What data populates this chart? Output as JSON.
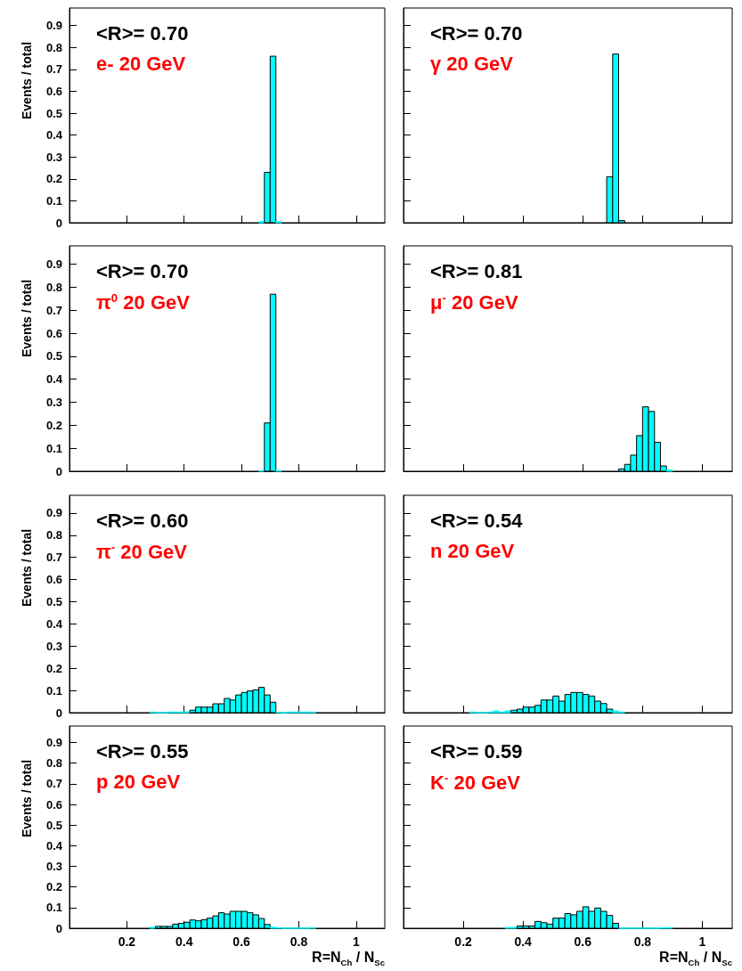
{
  "chart_data": [
    {
      "type": "histogram",
      "ylabel": "Events / total",
      "annotations": [
        "<R>= 0.70",
        "e- 20 GeV"
      ],
      "color": "#00ffff",
      "bins": [
        0.66,
        0.68,
        0.7,
        0.72,
        0.74
      ],
      "values": [
        0.005,
        0.23,
        0.76,
        0.005
      ],
      "xlim": [
        0,
        1.1
      ],
      "ylim": [
        0,
        0.98
      ],
      "xticks": [
        0.2,
        0.4,
        0.6,
        0.8,
        1
      ],
      "yticks": [
        0,
        0.1,
        0.2,
        0.3,
        0.4,
        0.5,
        0.6,
        0.7,
        0.8,
        0.9
      ],
      "tick_labels": "y"
    },
    {
      "type": "histogram",
      "annotations": [
        "<R>= 0.70",
        "γ 20 GeV"
      ],
      "color": "#00ffff",
      "bins": [
        0.68,
        0.7,
        0.72,
        0.74
      ],
      "values": [
        0.21,
        0.77,
        0.01
      ],
      "xlim": [
        0,
        1.1
      ],
      "ylim": [
        0,
        0.98
      ],
      "xticks": [
        0.2,
        0.4,
        0.6,
        0.8,
        1
      ],
      "yticks": [
        0,
        0.1,
        0.2,
        0.3,
        0.4,
        0.5,
        0.6,
        0.7,
        0.8,
        0.9
      ],
      "tick_labels": false
    },
    {
      "type": "histogram",
      "ylabel": "Events / total",
      "annotations": [
        "<R>= 0.70",
        "π$^{0}$ 20 GeV"
      ],
      "color": "#00ffff",
      "bins": [
        0.66,
        0.68,
        0.7,
        0.72,
        0.74
      ],
      "values": [
        0.003,
        0.21,
        0.77,
        0.003
      ],
      "xlim": [
        0,
        1.1
      ],
      "ylim": [
        0,
        0.98
      ],
      "xticks": [
        0.2,
        0.4,
        0.6,
        0.8,
        1
      ],
      "yticks": [
        0,
        0.1,
        0.2,
        0.3,
        0.4,
        0.5,
        0.6,
        0.7,
        0.8,
        0.9
      ],
      "tick_labels": "y"
    },
    {
      "type": "histogram",
      "annotations": [
        "<R>= 0.81",
        "μ$^{-}$ 20 GeV"
      ],
      "color": "#00ffff",
      "bins": [
        0.72,
        0.74,
        0.76,
        0.78,
        0.8,
        0.82,
        0.84,
        0.86,
        0.88,
        0.9
      ],
      "values": [
        0.01,
        0.03,
        0.07,
        0.155,
        0.28,
        0.26,
        0.126,
        0.023,
        0.005
      ],
      "xlim": [
        0,
        1.1
      ],
      "ylim": [
        0,
        0.98
      ],
      "xticks": [
        0.2,
        0.4,
        0.6,
        0.8,
        1
      ],
      "yticks": [
        0,
        0.1,
        0.2,
        0.3,
        0.4,
        0.5,
        0.6,
        0.7,
        0.8,
        0.9
      ],
      "tick_labels": false
    },
    {
      "type": "histogram",
      "ylabel": "Events / total",
      "annotations": [
        "<R>= 0.60",
        "π$^{-}$ 20 GeV"
      ],
      "color": "#00ffff",
      "bins": [
        0.28,
        0.3,
        0.32,
        0.34,
        0.36,
        0.38,
        0.4,
        0.42,
        0.44,
        0.46,
        0.48,
        0.5,
        0.52,
        0.54,
        0.56,
        0.58,
        0.6,
        0.62,
        0.64,
        0.66,
        0.68,
        0.7,
        0.72,
        0.74,
        0.76,
        0.78,
        0.8,
        0.82,
        0.84,
        0.86
      ],
      "values": [
        0.003,
        0,
        0,
        0.003,
        0.003,
        0.003,
        0.004,
        0.011,
        0.025,
        0.025,
        0.025,
        0.04,
        0.04,
        0.064,
        0.057,
        0.08,
        0.091,
        0.098,
        0.103,
        0.114,
        0.08,
        0.047,
        0.002,
        0,
        0.003,
        0.003,
        0.003,
        0.003,
        0.003
      ],
      "xlim": [
        0,
        1.1
      ],
      "ylim": [
        0,
        0.98
      ],
      "xticks": [
        0.2,
        0.4,
        0.6,
        0.8,
        1
      ],
      "yticks": [
        0,
        0.1,
        0.2,
        0.3,
        0.4,
        0.5,
        0.6,
        0.7,
        0.8,
        0.9
      ],
      "tick_labels": "y"
    },
    {
      "type": "histogram",
      "annotations": [
        "<R>= 0.54",
        "n 20 GeV"
      ],
      "color": "#00ffff",
      "bins": [
        0.22,
        0.24,
        0.26,
        0.28,
        0.3,
        0.32,
        0.34,
        0.36,
        0.38,
        0.4,
        0.42,
        0.44,
        0.46,
        0.48,
        0.5,
        0.52,
        0.54,
        0.56,
        0.58,
        0.6,
        0.62,
        0.64,
        0.66,
        0.68,
        0.7,
        0.72,
        0.74
      ],
      "values": [
        0.003,
        0,
        0,
        0.003,
        0.008,
        0.003,
        0.008,
        0.011,
        0.016,
        0.025,
        0.025,
        0.033,
        0.057,
        0.057,
        0.075,
        0.052,
        0.082,
        0.091,
        0.091,
        0.082,
        0.075,
        0.052,
        0.041,
        0.016,
        0.008,
        0.003
      ],
      "xlim": [
        0,
        1.1
      ],
      "ylim": [
        0,
        0.98
      ],
      "xticks": [
        0.2,
        0.4,
        0.6,
        0.8,
        1
      ],
      "yticks": [
        0,
        0.1,
        0.2,
        0.3,
        0.4,
        0.5,
        0.6,
        0.7,
        0.8,
        0.9
      ],
      "tick_labels": false
    },
    {
      "type": "histogram",
      "ylabel": "Events / total",
      "xlabel": "R=N$_{Ch}$ / N$_{Sc}$",
      "annotations": [
        "<R>= 0.55",
        "p 20 GeV"
      ],
      "color": "#00ffff",
      "bins": [
        0.28,
        0.3,
        0.32,
        0.34,
        0.36,
        0.38,
        0.4,
        0.42,
        0.44,
        0.46,
        0.48,
        0.5,
        0.52,
        0.54,
        0.56,
        0.58,
        0.6,
        0.62,
        0.64,
        0.66,
        0.68,
        0.7,
        0.72,
        0.74,
        0.76,
        0.78,
        0.8,
        0.82,
        0.84,
        0.86
      ],
      "values": [
        0.005,
        0.009,
        0.009,
        0.009,
        0.02,
        0.024,
        0.029,
        0.04,
        0.036,
        0.042,
        0.049,
        0.06,
        0.075,
        0.069,
        0.082,
        0.082,
        0.082,
        0.075,
        0.065,
        0.047,
        0.018,
        0.005,
        0.002,
        0,
        0,
        0,
        0,
        0,
        0.002
      ],
      "xlim": [
        0,
        1.1
      ],
      "ylim": [
        0,
        0.98
      ],
      "xticks": [
        0.2,
        0.4,
        0.6,
        0.8,
        1
      ],
      "yticks": [
        0,
        0.1,
        0.2,
        0.3,
        0.4,
        0.5,
        0.6,
        0.7,
        0.8,
        0.9
      ]
    },
    {
      "type": "histogram",
      "xlabel": "R=N$_{Ch}$ / N$_{Sc}$",
      "annotations": [
        "<R>= 0.59",
        "K$^{-}$ 20 GeV"
      ],
      "color": "#00ffff",
      "bins": [
        0.34,
        0.36,
        0.38,
        0.4,
        0.42,
        0.44,
        0.46,
        0.48,
        0.5,
        0.52,
        0.54,
        0.56,
        0.58,
        0.6,
        0.62,
        0.64,
        0.66,
        0.68,
        0.7,
        0.72,
        0.74,
        0.76,
        0.78,
        0.8,
        0.82,
        0.84,
        0.86,
        0.88,
        0.9
      ],
      "values": [
        0.004,
        0.004,
        0.011,
        0.011,
        0.011,
        0.033,
        0.027,
        0.02,
        0.049,
        0.049,
        0.071,
        0.065,
        0.082,
        0.104,
        0.082,
        0.098,
        0.082,
        0.062,
        0.024,
        0,
        0,
        0,
        0,
        0,
        0,
        0,
        0.003,
        0.003
      ],
      "xlim": [
        0,
        1.1
      ],
      "ylim": [
        0,
        0.98
      ],
      "xticks": [
        0.2,
        0.4,
        0.6,
        0.8,
        1
      ],
      "yticks": [
        0,
        0.1,
        0.2,
        0.3,
        0.4,
        0.5,
        0.6,
        0.7,
        0.8,
        0.9
      ],
      "tick_labels": "x"
    }
  ]
}
